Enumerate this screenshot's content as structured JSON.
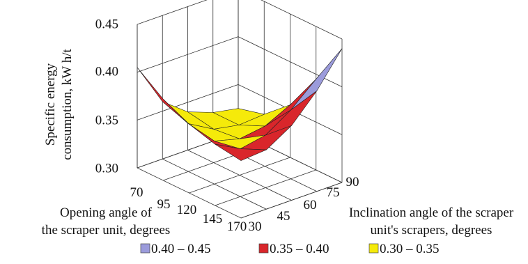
{
  "chart_data": {
    "type": "surface",
    "title": "",
    "zlabel_lines": [
      "Specific energy",
      "consumption, kW h/t"
    ],
    "xlabel_lines": [
      "Opening angle of",
      "the scraper unit, degrees"
    ],
    "ylabel_lines": [
      "Inclination angle of the scraper",
      "unit's scrapers, degrees"
    ],
    "x": [
      70,
      95,
      120,
      145,
      170
    ],
    "y": [
      30,
      45,
      60,
      75,
      90
    ],
    "x_ticks": [
      "70",
      "95",
      "120",
      "145",
      "170"
    ],
    "y_ticks": [
      "30",
      "45",
      "60",
      "75",
      "90"
    ],
    "z_ticks": [
      "0.30",
      "0.35",
      "0.40",
      "0.45"
    ],
    "zlim": [
      0.3,
      0.45
    ],
    "z": [
      [
        0.405,
        0.36,
        0.34,
        0.33,
        0.325
      ],
      [
        0.385,
        0.35,
        0.335,
        0.33,
        0.332
      ],
      [
        0.372,
        0.345,
        0.338,
        0.342,
        0.355
      ],
      [
        0.364,
        0.35,
        0.355,
        0.372,
        0.395
      ],
      [
        0.36,
        0.362,
        0.378,
        0.405,
        0.44
      ]
    ],
    "legend": [
      {
        "label": "0.40 – 0.45",
        "color": "#9b9bdb",
        "min": 0.4,
        "max": 0.45
      },
      {
        "label": "0.35 – 0.40",
        "color": "#d9262b",
        "min": 0.35,
        "max": 0.4
      },
      {
        "label": "0.30 – 0.35",
        "color": "#f5ea0a",
        "min": 0.3,
        "max": 0.35
      }
    ],
    "legend_position": "bottom"
  }
}
